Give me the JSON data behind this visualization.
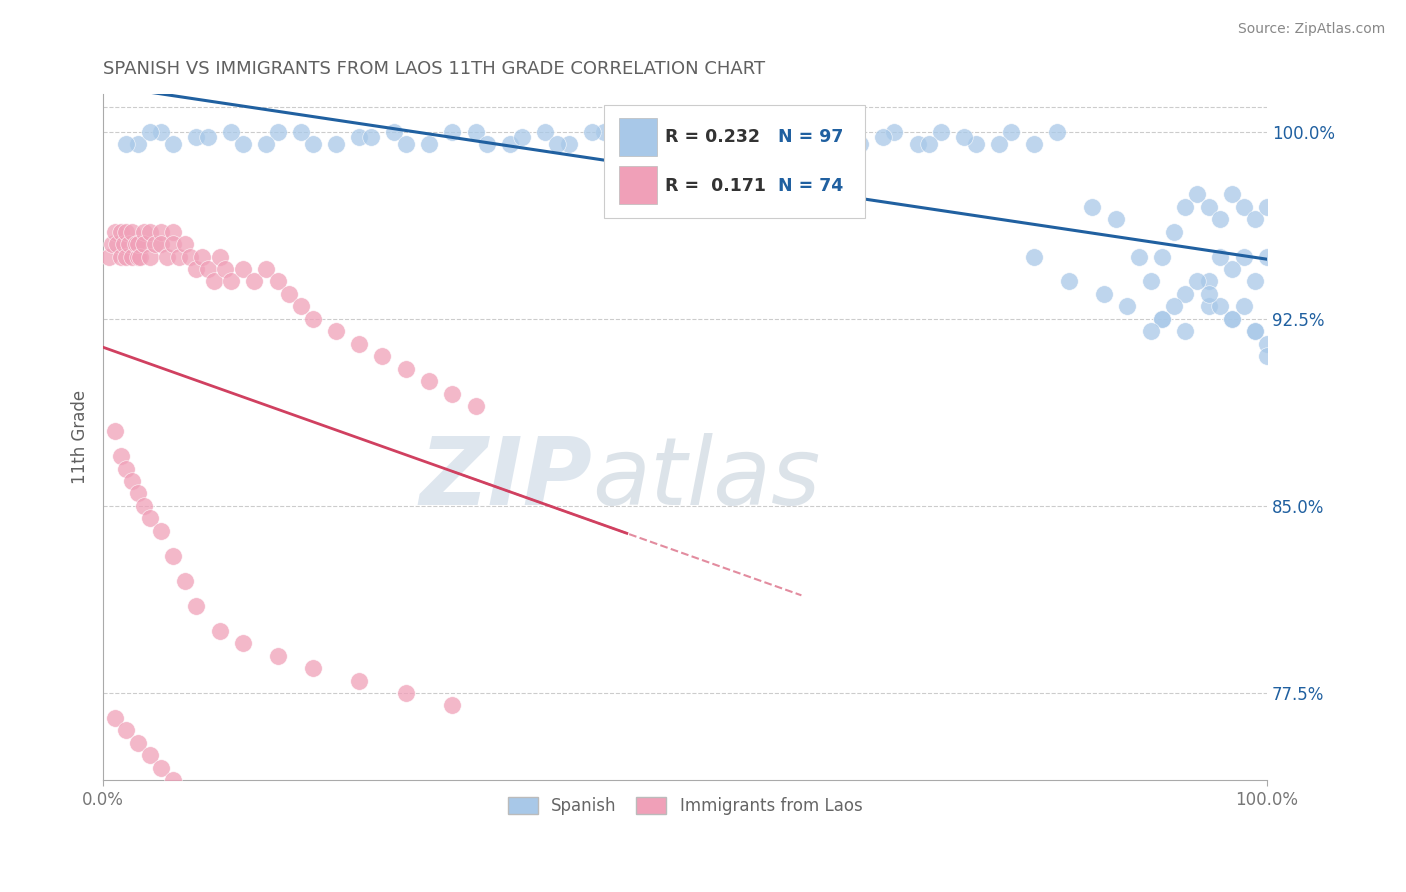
{
  "title": "SPANISH VS IMMIGRANTS FROM LAOS 11TH GRADE CORRELATION CHART",
  "source": "Source: ZipAtlas.com",
  "ylabel": "11th Grade",
  "xmin": 0.0,
  "xmax": 100.0,
  "ymin": 74.0,
  "ymax": 101.5,
  "yticks": [
    77.5,
    85.0,
    92.5,
    100.0
  ],
  "ytick_labels": [
    "77.5%",
    "85.0%",
    "92.5%",
    "100.0%"
  ],
  "watermark_zip": "ZIP",
  "watermark_atlas": "atlas",
  "legend_blue_r": "R = 0.232",
  "legend_blue_n": "N = 97",
  "legend_pink_r": "R =  0.171",
  "legend_pink_n": "N = 74",
  "blue_color": "#a8c8e8",
  "pink_color": "#f0a0b8",
  "blue_line_color": "#2060a0",
  "pink_line_color": "#d04060",
  "legend_text_color": "#2060a0",
  "axis_color": "#aaaaaa",
  "grid_color": "#cccccc",
  "title_color": "#606060",
  "source_color": "#888888",
  "ylabel_color": "#606060",
  "blue_scatter_x": [
    3,
    5,
    8,
    12,
    15,
    18,
    22,
    25,
    28,
    32,
    35,
    38,
    40,
    43,
    46,
    48,
    50,
    53,
    55,
    57,
    60,
    63,
    65,
    68,
    70,
    72,
    75,
    78,
    80,
    82,
    85,
    87,
    89,
    90,
    91,
    92,
    93,
    94,
    95,
    96,
    97,
    98,
    99,
    100,
    100,
    99,
    98,
    97,
    96,
    95,
    2,
    4,
    6,
    9,
    11,
    14,
    17,
    20,
    23,
    26,
    30,
    33,
    36,
    39,
    42,
    45,
    48,
    51,
    54,
    58,
    61,
    64,
    67,
    71,
    74,
    77,
    80,
    83,
    86,
    88,
    91,
    93,
    95,
    97,
    99,
    100,
    100,
    99,
    98,
    97,
    96,
    95,
    94,
    93,
    92,
    91,
    90
  ],
  "blue_scatter_y": [
    99.5,
    100,
    99.8,
    99.5,
    100,
    99.5,
    99.8,
    100,
    99.5,
    100,
    99.5,
    100,
    99.5,
    100,
    99.5,
    100,
    99.5,
    100,
    99.5,
    100,
    99.5,
    100,
    99.5,
    100,
    99.5,
    100,
    99.5,
    100,
    99.5,
    100,
    97,
    96.5,
    95,
    94,
    95,
    96,
    97,
    97.5,
    97,
    96.5,
    97.5,
    97,
    96.5,
    97,
    95,
    94,
    95,
    94.5,
    95,
    94,
    99.5,
    100,
    99.5,
    99.8,
    100,
    99.5,
    100,
    99.5,
    99.8,
    99.5,
    100,
    99.5,
    99.8,
    99.5,
    100,
    99.5,
    99.8,
    99.5,
    99.8,
    99.5,
    99.8,
    99.5,
    99.8,
    99.5,
    99.8,
    99.5,
    95,
    94,
    93.5,
    93,
    92.5,
    92,
    93,
    92.5,
    92,
    91.5,
    91,
    92,
    93,
    92.5,
    93,
    93.5,
    94,
    93.5,
    93,
    92.5,
    92
  ],
  "pink_scatter_x": [
    0.5,
    0.8,
    1,
    1.2,
    1.5,
    1.5,
    1.8,
    2,
    2,
    2.2,
    2.5,
    2.5,
    2.8,
    3,
    3,
    3.2,
    3.5,
    3.5,
    4,
    4,
    4.5,
    5,
    5,
    5.5,
    6,
    6,
    6.5,
    7,
    7.5,
    8,
    8.5,
    9,
    9.5,
    10,
    10.5,
    11,
    12,
    13,
    14,
    15,
    16,
    17,
    18,
    20,
    22,
    24,
    26,
    28,
    30,
    32,
    1,
    1.5,
    2,
    2.5,
    3,
    3.5,
    4,
    5,
    6,
    7,
    8,
    10,
    12,
    15,
    18,
    22,
    26,
    30,
    1,
    2,
    3,
    4,
    5,
    6
  ],
  "pink_scatter_y": [
    95,
    95.5,
    96,
    95.5,
    96,
    95,
    95.5,
    96,
    95,
    95.5,
    96,
    95,
    95.5,
    95,
    95.5,
    95,
    96,
    95.5,
    95,
    96,
    95.5,
    96,
    95.5,
    95,
    96,
    95.5,
    95,
    95.5,
    95,
    94.5,
    95,
    94.5,
    94,
    95,
    94.5,
    94,
    94.5,
    94,
    94.5,
    94,
    93.5,
    93,
    92.5,
    92,
    91.5,
    91,
    90.5,
    90,
    89.5,
    89,
    88,
    87,
    86.5,
    86,
    85.5,
    85,
    84.5,
    84,
    83,
    82,
    81,
    80,
    79.5,
    79,
    78.5,
    78,
    77.5,
    77,
    76.5,
    76,
    75.5,
    75,
    74.5,
    74
  ]
}
